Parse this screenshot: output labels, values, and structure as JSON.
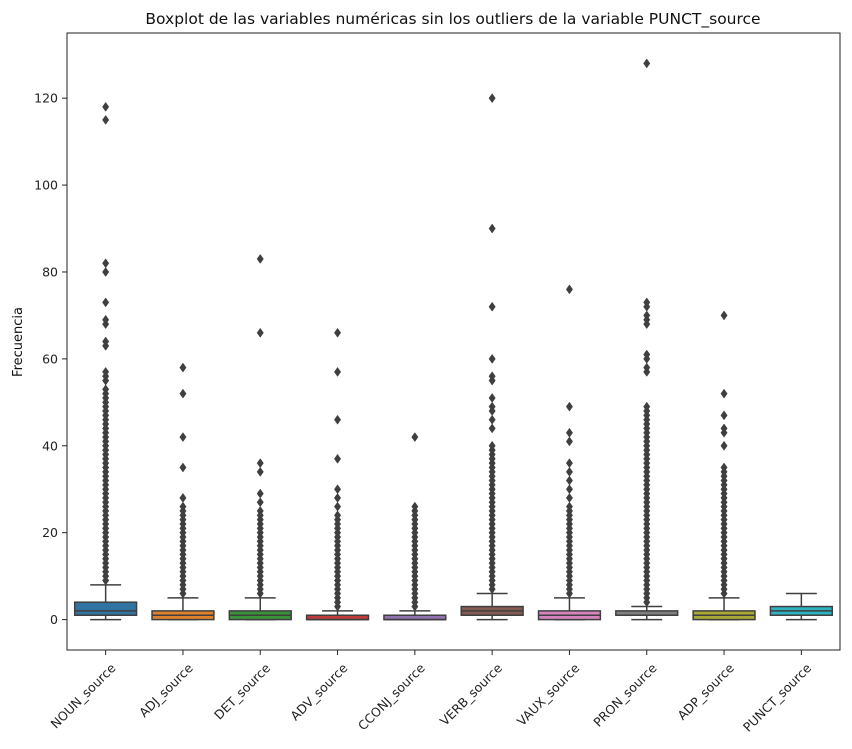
{
  "chart_data": {
    "type": "boxplot",
    "title": "Boxplot de las variables numéricas sin los outliers de la variable PUNCT_source",
    "xlabel": "",
    "ylabel": "Frecuencia",
    "ylim": [
      -7,
      135
    ],
    "yticks": [
      0,
      20,
      40,
      60,
      80,
      100,
      120
    ],
    "grid": false,
    "categories": [
      "NOUN_source",
      "ADJ_source",
      "DET_source",
      "ADV_source",
      "CCONJ_source",
      "VERB_source",
      "VAUX_source",
      "PRON_source",
      "ADP_source",
      "PUNCT_source"
    ],
    "series": [
      {
        "name": "NOUN_source",
        "color": "#3274a1",
        "min": 0,
        "q1": 1,
        "median": 2,
        "q3": 4,
        "max": 8,
        "fliers": [
          9,
          10,
          11,
          12,
          13,
          14,
          15,
          16,
          17,
          18,
          19,
          20,
          21,
          22,
          23,
          24,
          25,
          26,
          27,
          28,
          29,
          30,
          31,
          32,
          33,
          34,
          35,
          36,
          37,
          38,
          39,
          40,
          41,
          42,
          43,
          44,
          45,
          46,
          47,
          48,
          49,
          50,
          51,
          52,
          53,
          55,
          56,
          57,
          63,
          64,
          68,
          69,
          73,
          80,
          82,
          115,
          118
        ]
      },
      {
        "name": "ADJ_source",
        "color": "#e1812c",
        "min": 0,
        "q1": 0,
        "median": 1,
        "q3": 2,
        "max": 5,
        "fliers": [
          6,
          7,
          8,
          9,
          10,
          11,
          12,
          13,
          14,
          15,
          16,
          17,
          18,
          19,
          20,
          21,
          22,
          23,
          24,
          25,
          26,
          28,
          35,
          42,
          52,
          58
        ]
      },
      {
        "name": "DET_source",
        "color": "#3a923a",
        "min": 0,
        "q1": 0,
        "median": 1,
        "q3": 2,
        "max": 5,
        "fliers": [
          6,
          7,
          8,
          9,
          10,
          11,
          12,
          13,
          14,
          15,
          16,
          17,
          18,
          19,
          20,
          21,
          22,
          23,
          24,
          25,
          27,
          29,
          34,
          36,
          66,
          83
        ]
      },
      {
        "name": "ADV_source",
        "color": "#c03d3e",
        "min": 0,
        "q1": 0,
        "median": 0,
        "q3": 1,
        "max": 2,
        "fliers": [
          3,
          4,
          5,
          6,
          7,
          8,
          9,
          10,
          11,
          12,
          13,
          14,
          15,
          16,
          17,
          18,
          19,
          20,
          21,
          22,
          23,
          24,
          26,
          28,
          30,
          37,
          46,
          57,
          66
        ]
      },
      {
        "name": "CCONJ_source",
        "color": "#9372b2",
        "min": 0,
        "q1": 0,
        "median": 0,
        "q3": 1,
        "max": 2,
        "fliers": [
          3,
          4,
          5,
          6,
          7,
          8,
          9,
          10,
          11,
          12,
          13,
          14,
          15,
          16,
          17,
          18,
          19,
          20,
          21,
          22,
          23,
          24,
          25,
          26,
          42
        ]
      },
      {
        "name": "VERB_source",
        "color": "#845b53",
        "min": 0,
        "q1": 1,
        "median": 2,
        "q3": 3,
        "max": 6,
        "fliers": [
          7,
          8,
          9,
          10,
          11,
          12,
          13,
          14,
          15,
          16,
          17,
          18,
          19,
          20,
          21,
          22,
          23,
          24,
          25,
          26,
          27,
          28,
          29,
          30,
          31,
          32,
          33,
          34,
          35,
          36,
          37,
          38,
          39,
          40,
          44,
          46,
          48,
          49,
          51,
          55,
          56,
          60,
          72,
          90,
          120
        ]
      },
      {
        "name": "VAUX_source",
        "color": "#d684bd",
        "min": 0,
        "q1": 0,
        "median": 1,
        "q3": 2,
        "max": 5,
        "fliers": [
          6,
          7,
          8,
          9,
          10,
          11,
          12,
          13,
          14,
          15,
          16,
          17,
          18,
          19,
          20,
          21,
          22,
          23,
          24,
          25,
          26,
          28,
          30,
          32,
          34,
          36,
          41,
          43,
          49,
          76
        ]
      },
      {
        "name": "PRON_source",
        "color": "#7f7f7f",
        "min": 0,
        "q1": 1,
        "median": 1,
        "q3": 2,
        "max": 3,
        "fliers": [
          4,
          5,
          6,
          7,
          8,
          9,
          10,
          11,
          12,
          13,
          14,
          15,
          16,
          17,
          18,
          19,
          20,
          21,
          22,
          23,
          24,
          25,
          26,
          27,
          28,
          29,
          30,
          31,
          32,
          33,
          34,
          35,
          36,
          37,
          38,
          39,
          40,
          41,
          42,
          43,
          44,
          45,
          46,
          47,
          48,
          49,
          57,
          58,
          60,
          61,
          68,
          69,
          70,
          72,
          73,
          128
        ]
      },
      {
        "name": "ADP_source",
        "color": "#a9aa35",
        "min": 0,
        "q1": 0,
        "median": 1,
        "q3": 2,
        "max": 5,
        "fliers": [
          6,
          7,
          8,
          9,
          10,
          11,
          12,
          13,
          14,
          15,
          16,
          17,
          18,
          19,
          20,
          21,
          22,
          23,
          24,
          25,
          26,
          27,
          28,
          29,
          30,
          31,
          32,
          33,
          34,
          35,
          40,
          43,
          44,
          47,
          52,
          70
        ]
      },
      {
        "name": "PUNCT_source",
        "color": "#2eb1c0",
        "min": 0,
        "q1": 1,
        "median": 2,
        "q3": 3,
        "max": 6,
        "fliers": []
      }
    ]
  }
}
